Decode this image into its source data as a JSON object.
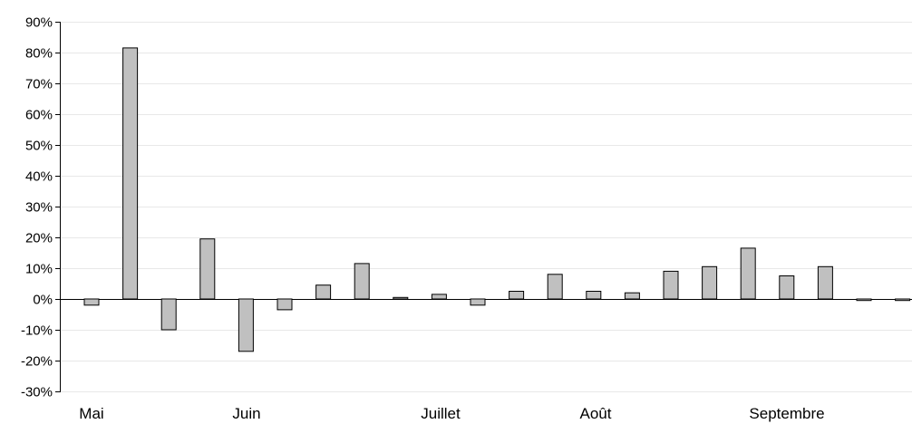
{
  "chart_data": {
    "type": "bar",
    "title": "",
    "xlabel": "",
    "ylabel": "",
    "ylim": [
      -0.3,
      0.9
    ],
    "yticks": [
      0.9,
      0.8,
      0.7,
      0.6,
      0.5,
      0.4,
      0.3,
      0.2,
      0.1,
      0.0,
      -0.1,
      -0.2,
      -0.3
    ],
    "ytick_labels": [
      "90%",
      "80%",
      "70%",
      "60%",
      "50%",
      "40%",
      "30%",
      "20%",
      "10%",
      "0%",
      "-10%",
      "-20%",
      "-30%"
    ],
    "grid": true,
    "legend": "none",
    "months": [
      "Mai",
      "Juin",
      "Juillet",
      "Août",
      "Septembre"
    ],
    "bar_fill": "#c0c0c0",
    "bar_stroke": "#000000",
    "grid_color": "#e8e8e8",
    "values": [
      -0.02,
      0.815,
      -0.1,
      0.195,
      -0.17,
      -0.035,
      0.045,
      0.115,
      0.005,
      0.015,
      -0.02,
      0.025,
      0.08,
      0.025,
      0.02,
      0.09,
      0.105,
      0.165,
      0.075,
      0.105,
      -0.005,
      -0.005
    ]
  }
}
